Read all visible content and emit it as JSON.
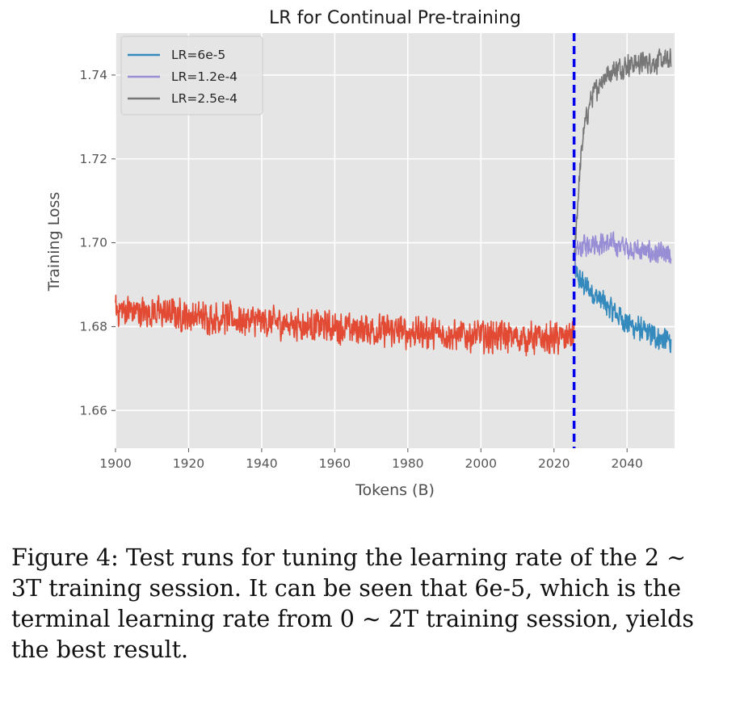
{
  "chart_data": {
    "type": "line",
    "title": "LR for Continual Pre-training",
    "xlabel": "Tokens (B)",
    "ylabel": "Training Loss",
    "xlim": [
      1900,
      2053
    ],
    "ylim": [
      1.651,
      1.75
    ],
    "xticks": [
      1900,
      1920,
      1940,
      1960,
      1980,
      2000,
      2020,
      2040
    ],
    "yticks": [
      1.66,
      1.68,
      1.7,
      1.72,
      1.74
    ],
    "grid": true,
    "legend_position": "top-left",
    "vline": {
      "x": 2025.5,
      "style": "dashed",
      "color": "#0000ee"
    },
    "series": [
      {
        "name": "",
        "color": "#e24a33",
        "x": [
          1900,
          1910,
          1920,
          1930,
          1940,
          1950,
          1960,
          1970,
          1980,
          1990,
          2000,
          2010,
          2020,
          2025.5
        ],
        "y": [
          1.684,
          1.6835,
          1.6825,
          1.682,
          1.6812,
          1.6806,
          1.6798,
          1.6792,
          1.6787,
          1.6782,
          1.6778,
          1.6774,
          1.677,
          1.6778
        ],
        "noise": 0.0045
      },
      {
        "name": "LR=6e-5",
        "color": "#348abd",
        "x": [
          2025.5,
          2027,
          2030,
          2035,
          2040,
          2045,
          2050,
          2052
        ],
        "y": [
          1.6935,
          1.691,
          1.6885,
          1.6845,
          1.681,
          1.6785,
          1.677,
          1.6765
        ],
        "noise": 0.0035
      },
      {
        "name": "LR=1.2e-4",
        "color": "#988ed5",
        "x": [
          2025.5,
          2026.5,
          2028,
          2030,
          2035,
          2040,
          2045,
          2050,
          2052
        ],
        "y": [
          1.694,
          1.698,
          1.6995,
          1.7,
          1.6998,
          1.699,
          1.6978,
          1.697,
          1.6965
        ],
        "noise": 0.0032
      },
      {
        "name": "LR=2.5e-4",
        "color": "#777777",
        "x": [
          2025.5,
          2026,
          2027,
          2028,
          2030,
          2033,
          2036,
          2040,
          2045,
          2050,
          2052
        ],
        "y": [
          1.694,
          1.703,
          1.716,
          1.726,
          1.734,
          1.739,
          1.741,
          1.7425,
          1.743,
          1.7433,
          1.7433
        ],
        "noise": 0.0032
      }
    ]
  },
  "caption": "Figure 4: Test runs for tuning the learning rate of the 2 ∼ 3T training session. It can be seen that 6e-5, which is the terminal learning rate from 0 ∼ 2T training session, yields the best result."
}
